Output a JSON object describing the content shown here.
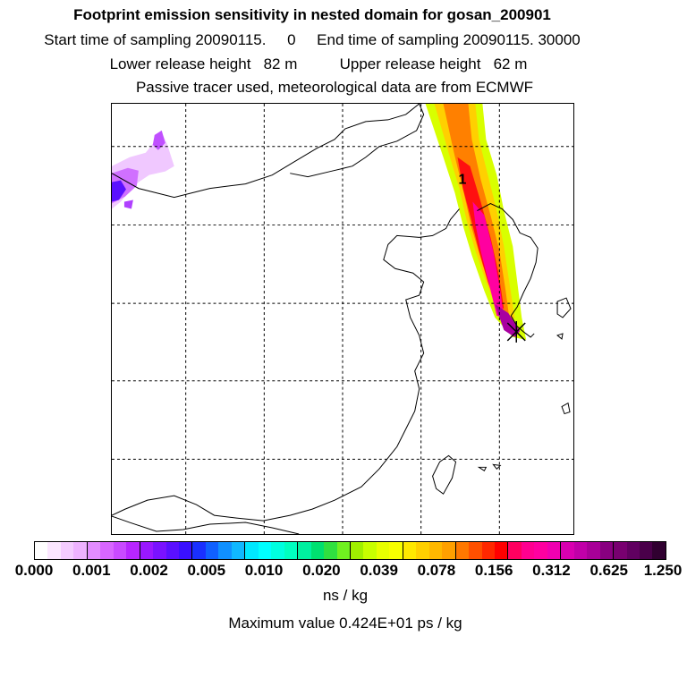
{
  "header": {
    "title": "Footprint emission sensitivity in nested domain for gosan_200901",
    "sampling": "Start time of sampling 20090115.     0     End time of sampling 20090115. 30000",
    "heights": "Lower release height   82 m          Upper release height   62 m",
    "tracer": "Passive tracer used, meteorological data are from ECMWF"
  },
  "map": {
    "contour_label": "1"
  },
  "colorbar": {
    "ticks": [
      "0.000",
      "0.001",
      "0.002",
      "0.005",
      "0.010",
      "0.020",
      "0.039",
      "0.078",
      "0.156",
      "0.312",
      "0.625",
      "1.250"
    ],
    "segments": [
      [
        "#ffffff",
        "#fbe6ff",
        "#f4ccff",
        "#eeb2ff"
      ],
      [
        "#e28cff",
        "#d866ff",
        "#c94aff",
        "#b826ff"
      ],
      [
        "#9a18ff",
        "#7a12ff",
        "#5a10ff",
        "#3a10ff"
      ],
      [
        "#1a30ff",
        "#1060ff",
        "#1090ff",
        "#10b8ff"
      ],
      [
        "#00e8ff",
        "#00ffff",
        "#00ffe0",
        "#00ffc0"
      ],
      [
        "#00f0a0",
        "#00e070",
        "#30e040",
        "#70f020"
      ],
      [
        "#a0f000",
        "#c8ff00",
        "#e8ff00",
        "#f8ff00"
      ],
      [
        "#ffe800",
        "#ffd000",
        "#ffb800",
        "#ffa000"
      ],
      [
        "#ff7800",
        "#ff5000",
        "#ff2800",
        "#ff0000"
      ],
      [
        "#ff0060",
        "#ff0090",
        "#ff00a0",
        "#f000b0"
      ],
      [
        "#d800b0",
        "#c000a8",
        "#a80098",
        "#880080"
      ],
      [
        "#780070",
        "#600060",
        "#4a004a",
        "#300030"
      ]
    ],
    "units": "ns / kg"
  },
  "footer": {
    "max_value": "Maximum value  0.424E+01 ps / kg"
  }
}
